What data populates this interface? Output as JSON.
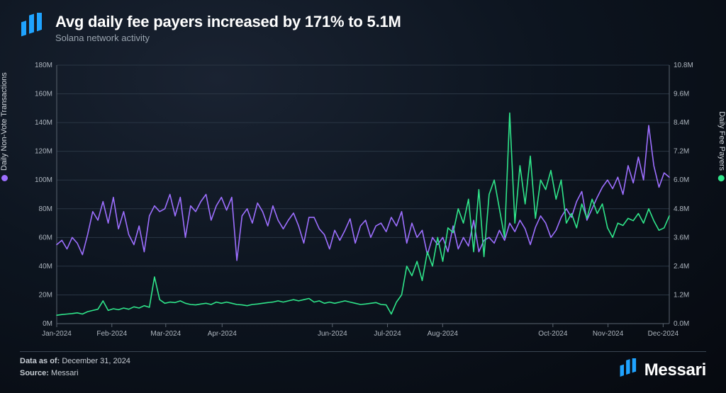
{
  "header": {
    "title": "Avg daily fee payers increased by 171% to 5.1M",
    "subtitle": "Solana network activity"
  },
  "footer": {
    "data_as_of_label": "Data as of:",
    "data_as_of_value": "December 31, 2024",
    "source_label": "Source:",
    "source_value": "Messari",
    "brand": "Messari"
  },
  "chart": {
    "type": "dual-axis-line",
    "background_color": "transparent",
    "grid_color": "#2a3644",
    "axis_line_color": "#5a6470",
    "tick_font_size": 10,
    "tick_color": "#aeb6bf",
    "x": {
      "ticks": [
        "Jan-2024",
        "Feb-2024",
        "Mar-2024",
        "Apr-2024",
        "Jun-2024",
        "Jul-2024",
        "Aug-2024",
        "Oct-2024",
        "Nov-2024",
        "Dec-2024"
      ],
      "tick_positions": [
        0.0,
        0.09,
        0.178,
        0.27,
        0.45,
        0.54,
        0.63,
        0.81,
        0.9,
        0.99
      ]
    },
    "y_left": {
      "label": "Daily Non-Vote Transactions",
      "min": 0,
      "max": 180,
      "unit_suffix": "M",
      "tick_step": 20,
      "ticks": [
        "0M",
        "20M",
        "40M",
        "60M",
        "80M",
        "100M",
        "120M",
        "140M",
        "160M",
        "180M"
      ],
      "color": "#9d6fff",
      "line_width": 1.6
    },
    "y_right": {
      "label": "Daily Fee Payers",
      "min": 0,
      "max": 10.8,
      "unit_suffix": "M",
      "tick_step": 1.2,
      "ticks": [
        "0.0M",
        "1.2M",
        "2.4M",
        "3.6M",
        "4.8M",
        "6.0M",
        "7.2M",
        "8.4M",
        "9.6M",
        "10.8M"
      ],
      "color": "#2fe58a",
      "line_width": 1.6
    },
    "series": [
      {
        "name": "Daily Non-Vote Transactions",
        "axis": "left",
        "color": "#9d6fff",
        "data": [
          55,
          58,
          52,
          60,
          56,
          48,
          62,
          78,
          72,
          85,
          70,
          88,
          66,
          78,
          62,
          55,
          68,
          50,
          75,
          82,
          78,
          80,
          90,
          75,
          88,
          60,
          82,
          78,
          85,
          90,
          72,
          82,
          88,
          79,
          88,
          44,
          75,
          80,
          70,
          84,
          78,
          68,
          82,
          72,
          66,
          72,
          77,
          68,
          56,
          74,
          74,
          66,
          62,
          52,
          65,
          58,
          65,
          73,
          56,
          68,
          72,
          60,
          68,
          70,
          64,
          74,
          68,
          78,
          56,
          70,
          60,
          65,
          48,
          60,
          55,
          60,
          50,
          68,
          52,
          60,
          54,
          72,
          50,
          58,
          60,
          56,
          65,
          58,
          70,
          64,
          72,
          66,
          55,
          67,
          75,
          70,
          60,
          65,
          74,
          80,
          74,
          85,
          92,
          72,
          80,
          88,
          95,
          100,
          94,
          102,
          90,
          110,
          98,
          116,
          100,
          138,
          110,
          95,
          105,
          102
        ]
      },
      {
        "name": "Daily Fee Payers",
        "axis": "right",
        "color": "#2fe58a",
        "data": [
          0.35,
          0.38,
          0.4,
          0.42,
          0.45,
          0.4,
          0.5,
          0.55,
          0.6,
          0.95,
          0.55,
          0.62,
          0.58,
          0.65,
          0.6,
          0.7,
          0.65,
          0.75,
          0.68,
          1.95,
          1.0,
          0.85,
          0.9,
          0.88,
          0.95,
          0.85,
          0.8,
          0.78,
          0.82,
          0.85,
          0.8,
          0.9,
          0.85,
          0.9,
          0.85,
          0.8,
          0.78,
          0.75,
          0.8,
          0.82,
          0.85,
          0.88,
          0.9,
          0.95,
          0.9,
          0.95,
          1.0,
          0.95,
          1.0,
          1.05,
          0.9,
          0.95,
          0.85,
          0.9,
          0.85,
          0.9,
          0.95,
          0.9,
          0.85,
          0.8,
          0.82,
          0.85,
          0.88,
          0.8,
          0.78,
          0.4,
          0.9,
          1.2,
          2.4,
          2.0,
          2.6,
          1.8,
          3.0,
          2.4,
          3.6,
          2.6,
          4.0,
          3.8,
          4.8,
          4.2,
          5.2,
          3.0,
          5.6,
          2.8,
          5.4,
          6.0,
          4.8,
          3.6,
          8.8,
          4.2,
          6.6,
          5.0,
          7.0,
          4.4,
          6.0,
          5.6,
          6.4,
          5.2,
          6.0,
          4.2,
          4.6,
          4.0,
          5.0,
          4.4,
          5.2,
          4.6,
          5.0,
          4.0,
          3.6,
          4.2,
          4.1,
          4.4,
          4.3,
          4.6,
          4.2,
          4.8,
          4.3,
          3.9,
          4.0,
          4.5
        ]
      }
    ]
  },
  "colors": {
    "logo": "#1fa3ff"
  }
}
